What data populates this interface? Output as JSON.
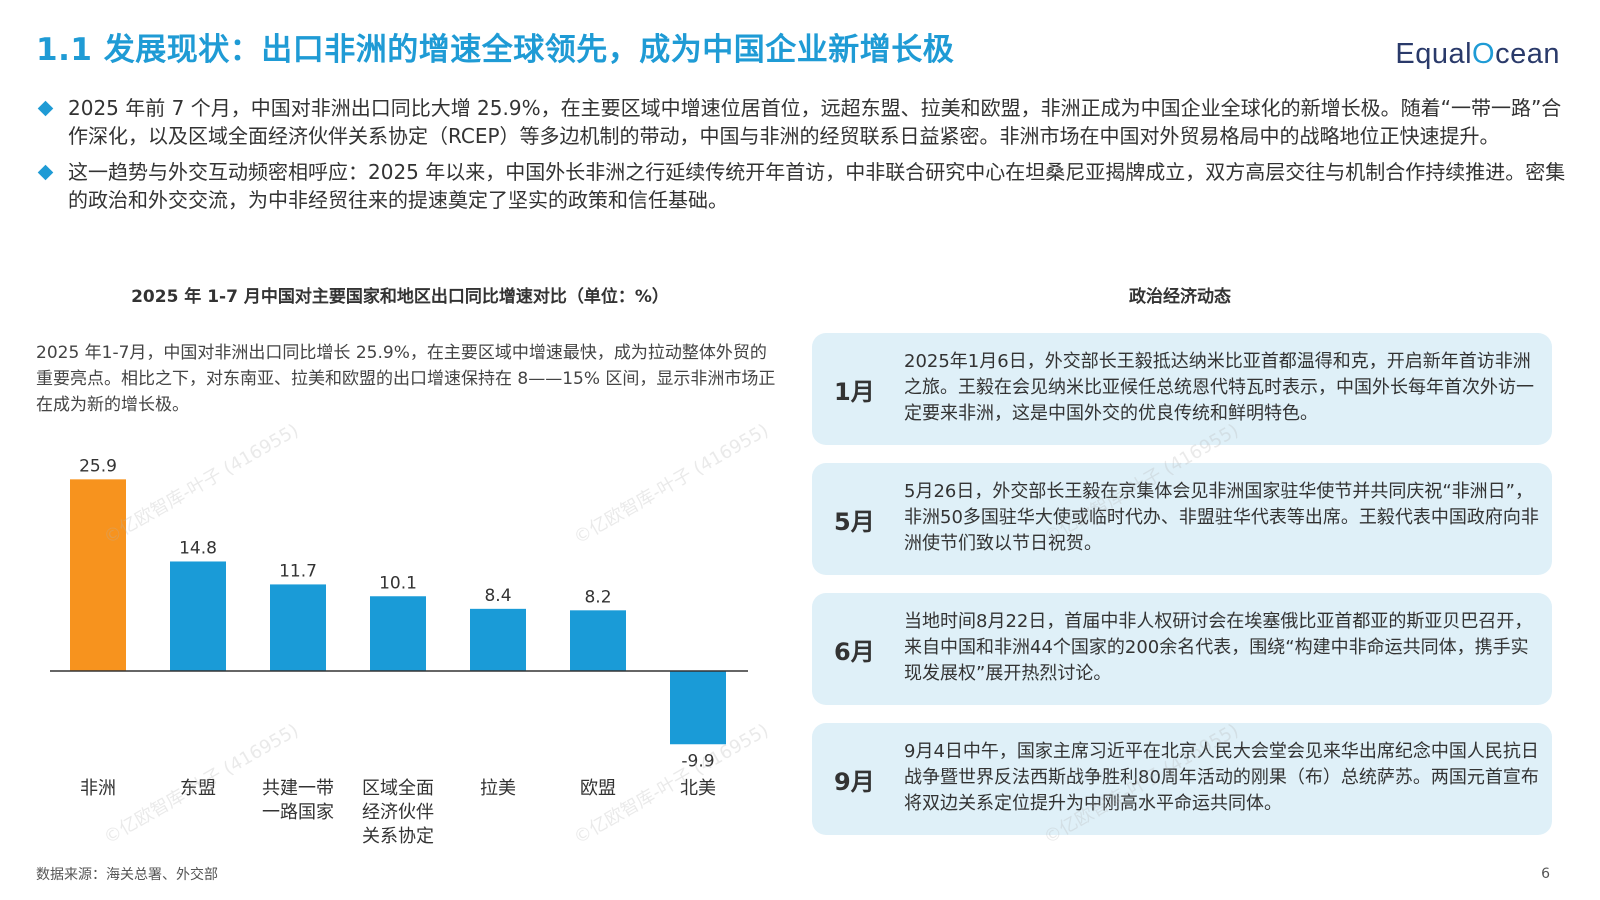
{
  "header": {
    "title": "1.1 发展现状：出口非洲的增速全球领先，成为中国企业新增长极",
    "logo_part1": "Equal",
    "logo_o": "O",
    "logo_part2": "cean"
  },
  "bullets": [
    "2025 年前 7 个月，中国对非洲出口同比大增 25.9%，在主要区域中增速位居首位，远超东盟、拉美和欧盟，非洲正成为中国企业全球化的新增长极。随着“一带一路”合作深化，以及区域全面经济伙伴关系协定（RCEP）等多边机制的带动，中国与非洲的经贸联系日益紧密。非洲市场在中国对外贸易格局中的战略地位正快速提升。",
    "这一趋势与外交互动频密相呼应：2025 年以来，中国外长非洲之行延续传统开年首访，中非联合研究中心在坦桑尼亚揭牌成立，双方高层交往与机制合作持续推进。密集的政治和外交交流，为中非经贸往来的提速奠定了坚实的政策和信任基础。"
  ],
  "chart_section": {
    "title": "2025 年 1-7 月中国对主要国家和地区出口同比增速对比（单位：%）",
    "description": "2025 年1-7月，中国对非洲出口同比增长 25.9%，在主要区域中增速最快，成为拉动整体外贸的重要亮点。相比之下，对东南亚、拉美和欧盟的出口增速保持在 8——15% 区间，显示非洲市场正在成为新的增长极。"
  },
  "chart_data": {
    "type": "bar",
    "title": "2025 年 1-7 月中国对主要国家和地区出口同比增速对比（单位：%）",
    "categories": [
      "非洲",
      "东盟",
      "共建一带一路国家",
      "区域全面经济伙伴关系协定",
      "拉美",
      "欧盟",
      "北美"
    ],
    "category_lines": [
      [
        "非洲"
      ],
      [
        "东盟"
      ],
      [
        "共建一带",
        "一路国家"
      ],
      [
        "区域全面",
        "经济伙伴",
        "关系协定"
      ],
      [
        "拉美"
      ],
      [
        "欧盟"
      ],
      [
        "北美"
      ]
    ],
    "values": [
      25.9,
      14.8,
      11.7,
      10.1,
      8.4,
      8.2,
      -9.9
    ],
    "value_labels": [
      "25.9",
      "14.8",
      "11.7",
      "10.1",
      "8.4",
      "8.2",
      "-9.9"
    ],
    "ylim": [
      -9.9,
      25.9
    ],
    "grid": false,
    "colors": {
      "highlight": "#f7931e",
      "default": "#1a9bd7",
      "axis": "#333333"
    }
  },
  "right_section": {
    "title": "政治经济动态",
    "events": [
      {
        "month": "1月",
        "text": "2025年1月6日，外交部长王毅抵达纳米比亚首都温得和克，开启新年首访非洲之旅。王毅在会见纳米比亚候任总统恩代特瓦时表示，中国外长每年首次外访一定要来非洲，这是中国外交的优良传统和鲜明特色。"
      },
      {
        "month": "5月",
        "text": "5月26日，外交部长王毅在京集体会见非洲国家驻华使节并共同庆祝“非洲日”，非洲50多国驻华大使或临时代办、非盟驻华代表等出席。王毅代表中国政府向非洲使节们致以节日祝贺。"
      },
      {
        "month": "6月",
        "text": "当地时间8月22日，首届中非人权研讨会在埃塞俄比亚首都亚的斯亚贝巴召开，来自中国和非洲44个国家的200余名代表，围绕“构建中非命运共同体，携手实现发展权”展开热烈讨论。"
      },
      {
        "month": "9月",
        "text": "9月4日中午，国家主席习近平在北京人民大会堂会见来华出席纪念中国人民抗日战争暨世界反法西斯战争胜利80周年活动的刚果（布）总统萨苏。两国元首宣布将双边关系定位提升为中刚高水平命运共同体。"
      }
    ]
  },
  "footer": {
    "source": "数据来源：海关总署、外交部",
    "page": "6"
  },
  "watermark": "©亿欧智库-叶子 (416955)"
}
